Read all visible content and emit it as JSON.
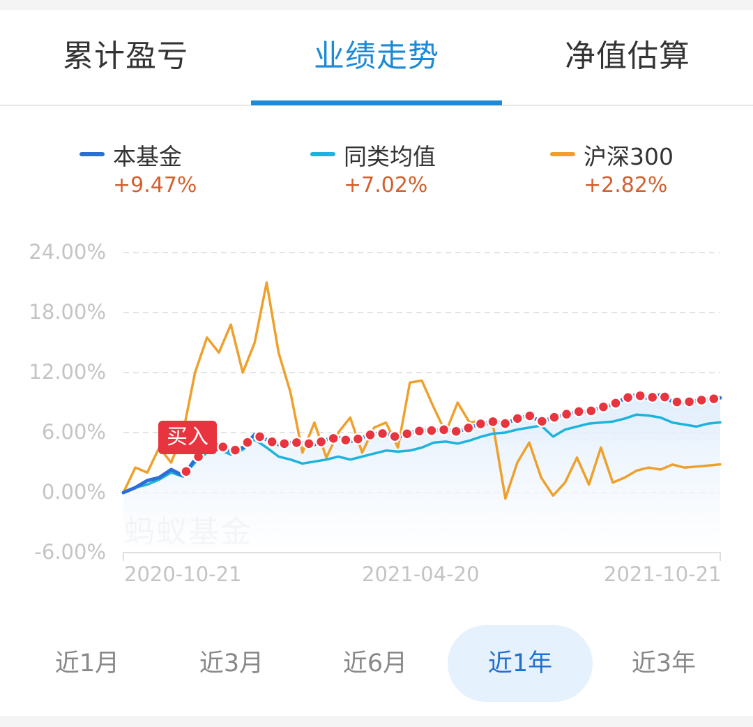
{
  "tabs": [
    {
      "label": "累计盈亏",
      "active": false
    },
    {
      "label": "业绩走势",
      "active": true
    },
    {
      "label": "净值估算",
      "active": false
    }
  ],
  "legend": [
    {
      "name": "本基金",
      "pct": "+9.47%",
      "color": "#2a6fd6"
    },
    {
      "name": "同类均值",
      "pct": "+7.02%",
      "color": "#1cb3dc"
    },
    {
      "name": "沪深300",
      "pct": "+2.82%",
      "color": "#eea02b"
    }
  ],
  "watermark": "蚂蚁基金",
  "buy_marker": {
    "label": "买入",
    "color": "#e8343f"
  },
  "periods": [
    {
      "label": "近1月",
      "active": false
    },
    {
      "label": "近3月",
      "active": false
    },
    {
      "label": "近6月",
      "active": false
    },
    {
      "label": "近1年",
      "active": true
    },
    {
      "label": "近3年",
      "active": false
    }
  ],
  "chart_data": {
    "type": "line",
    "title": "业绩走势",
    "xlabel": "",
    "ylabel": "",
    "ylim": [
      -6,
      24
    ],
    "y_ticks": [
      "24.00%",
      "18.00%",
      "12.00%",
      "6.00%",
      "0.00%",
      "-6.00%"
    ],
    "x_ticks": [
      "2020-10-21",
      "2021-04-20",
      "2021-10-21"
    ],
    "grid": true,
    "legend_position": "top",
    "x": [
      0,
      0.02,
      0.04,
      0.06,
      0.08,
      0.1,
      0.12,
      0.14,
      0.16,
      0.18,
      0.2,
      0.22,
      0.24,
      0.26,
      0.28,
      0.3,
      0.32,
      0.34,
      0.36,
      0.38,
      0.4,
      0.42,
      0.44,
      0.46,
      0.48,
      0.5,
      0.52,
      0.54,
      0.56,
      0.58,
      0.6,
      0.62,
      0.64,
      0.66,
      0.68,
      0.7,
      0.72,
      0.74,
      0.76,
      0.78,
      0.8,
      0.82,
      0.84,
      0.86,
      0.88,
      0.9,
      0.92,
      0.94,
      0.96,
      0.98,
      1.0
    ],
    "series": [
      {
        "name": "本基金",
        "final": "+9.47%",
        "values": [
          0,
          0.5,
          1.2,
          1.5,
          2.3,
          1.7,
          3.3,
          4.3,
          4.8,
          4.1,
          4.5,
          5.8,
          5.3,
          4.8,
          5.0,
          5.0,
          4.8,
          5.3,
          5.5,
          5.1,
          5.5,
          5.9,
          5.9,
          5.5,
          6.0,
          6.2,
          6.2,
          6.3,
          6.1,
          6.5,
          6.9,
          7.1,
          6.9,
          7.4,
          7.7,
          7.1,
          7.5,
          7.8,
          8.1,
          8.1,
          8.5,
          8.8,
          9.4,
          9.8,
          9.4,
          9.8,
          9.1,
          9.0,
          9.2,
          9.3,
          9.47
        ]
      },
      {
        "name": "同类均值",
        "final": "+7.02%",
        "values": [
          0,
          0.5,
          0.8,
          1.3,
          2.0,
          1.6,
          3.0,
          4.0,
          4.3,
          3.8,
          4.3,
          5.3,
          4.5,
          3.6,
          3.3,
          2.9,
          3.1,
          3.3,
          3.6,
          3.3,
          3.6,
          3.9,
          4.2,
          4.1,
          4.2,
          4.5,
          5.0,
          5.1,
          4.9,
          5.2,
          5.6,
          5.9,
          6.0,
          6.3,
          6.5,
          6.7,
          5.6,
          6.3,
          6.6,
          6.9,
          7.0,
          7.1,
          7.4,
          7.8,
          7.7,
          7.5,
          7.0,
          6.8,
          6.6,
          6.9,
          7.02
        ]
      },
      {
        "name": "沪深300",
        "final": "+2.82%",
        "values": [
          0,
          2.5,
          2.0,
          4.5,
          3.0,
          6.0,
          12.0,
          15.5,
          14.0,
          16.8,
          12.0,
          15.0,
          21.0,
          14.0,
          10.0,
          4.0,
          7.0,
          3.5,
          6.0,
          7.5,
          4.0,
          6.5,
          7.0,
          4.5,
          11.0,
          11.2,
          8.5,
          6.0,
          9.0,
          7.0,
          7.2,
          6.5,
          -0.6,
          3.0,
          5.0,
          1.5,
          -0.3,
          1.0,
          3.5,
          0.8,
          4.5,
          1.0,
          1.5,
          2.2,
          2.5,
          2.3,
          2.8,
          2.5,
          2.6,
          2.7,
          2.82
        ]
      }
    ]
  }
}
